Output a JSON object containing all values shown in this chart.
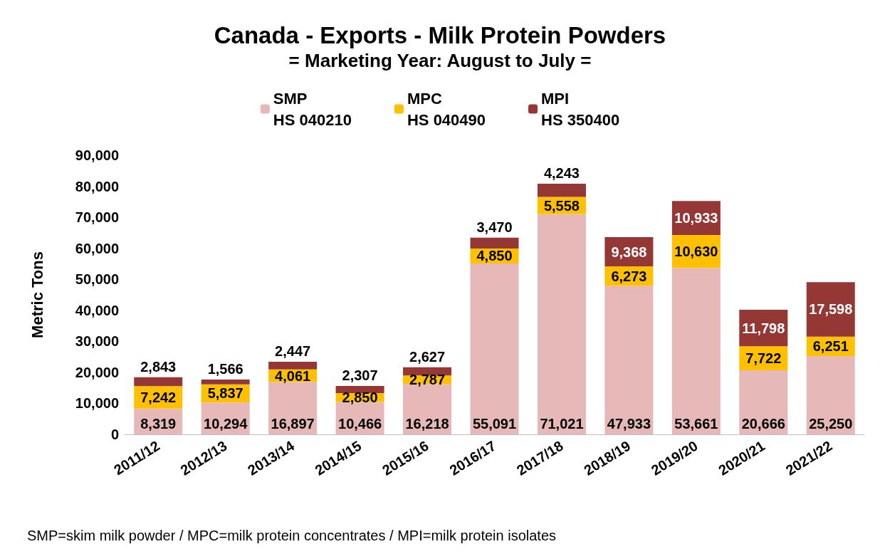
{
  "chart_data": {
    "type": "bar",
    "title": "Canada - Exports - Milk Protein Powders",
    "subtitle": "= Marketing Year: August to July =",
    "ylabel": "Metric Tons",
    "categories": [
      "2011/12",
      "2012/13",
      "2013/14",
      "2014/15",
      "2015/16",
      "2016/17",
      "2017/18",
      "2018/19",
      "2019/20",
      "2020/21",
      "2021/22"
    ],
    "series": [
      {
        "name": "SMP\nHS 040210",
        "color": "#e6b8b7",
        "values": [
          8319,
          10294,
          16897,
          10466,
          16218,
          55091,
          71021,
          47933,
          53661,
          20666,
          25250
        ],
        "value_labels": [
          "8,319",
          "10,294",
          "16,897",
          "10,466",
          "16,218",
          "55,091",
          "71,021",
          "47,933",
          "53,661",
          "20,666",
          "25,250"
        ]
      },
      {
        "name": "MPC\nHS 040490",
        "color": "#ffc000",
        "values": [
          7242,
          5837,
          4061,
          2850,
          2787,
          4850,
          5558,
          6273,
          10630,
          7722,
          6251
        ],
        "value_labels": [
          "7,242",
          "5,837",
          "4,061",
          "2,850",
          "2,787",
          "4,850",
          "5,558",
          "6,273",
          "10,630",
          "7,722",
          "6,251"
        ]
      },
      {
        "name": "MPI\nHS 350400",
        "color": "#953735",
        "values": [
          2843,
          1566,
          2447,
          2307,
          2627,
          3470,
          4243,
          9368,
          10933,
          11798,
          17598
        ],
        "value_labels": [
          "2,843",
          "1,566",
          "2,447",
          "2,307",
          "2,627",
          "3,470",
          "4,243",
          "9,368",
          "10,933",
          "11,798",
          "17,598"
        ]
      }
    ],
    "stacked": true,
    "legend": "top",
    "grid": false,
    "ylim": [
      0,
      90000
    ],
    "yticks": [
      0,
      {
        "value": 10000,
        "label": "10,000"
      },
      {
        "value": 20000,
        "label": "20,000"
      },
      {
        "value": 30000,
        "label": "30,000"
      },
      {
        "value": 40000,
        "label": "40,000"
      },
      {
        "value": 50000,
        "label": "50,000"
      },
      {
        "value": 60000,
        "label": "60,000"
      },
      {
        "value": 70000,
        "label": "70,000"
      },
      {
        "value": 80000,
        "label": "80,000"
      },
      {
        "value": 90000,
        "label": "90,000"
      }
    ],
    "annotations": [
      "SMP=skim milk powder / MPC=milk protein concentrates / MPI=milk protein isolates"
    ]
  }
}
